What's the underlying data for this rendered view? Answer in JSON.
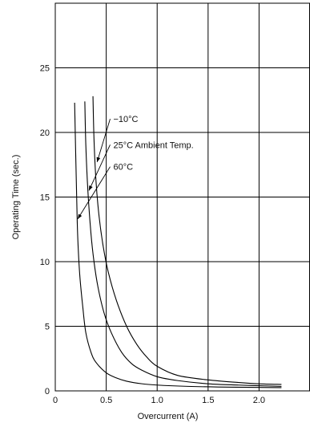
{
  "chart_data": {
    "type": "line",
    "title": "",
    "xlabel": "Overcurrent (A)",
    "ylabel": "Operating Time (sec.)",
    "xlim": [
      0,
      2.5
    ],
    "ylim": [
      0,
      30
    ],
    "x_ticks": [
      0,
      0.5,
      1.0,
      1.5,
      2.0
    ],
    "x_tick_labels": [
      "0",
      "0.5",
      "1.0",
      "1.5",
      "2.0"
    ],
    "y_ticks": [
      0,
      5,
      10,
      15,
      20,
      25
    ],
    "y_tick_labels": [
      "0",
      "5",
      "10",
      "15",
      "20",
      "25"
    ],
    "grid": true,
    "series": [
      {
        "name": "−10°C",
        "x": [
          0.37,
          0.38,
          0.4,
          0.43,
          0.47,
          0.52,
          0.6,
          0.7,
          0.8,
          0.9,
          1.0,
          1.2,
          1.5,
          1.8,
          2.0,
          2.22
        ],
        "y": [
          22.8,
          19.5,
          16.2,
          13.5,
          11.2,
          9.2,
          7.0,
          5.0,
          3.6,
          2.6,
          1.9,
          1.2,
          0.85,
          0.65,
          0.55,
          0.5
        ]
      },
      {
        "name": "25°C Ambient Temp.",
        "x": [
          0.29,
          0.3,
          0.32,
          0.35,
          0.38,
          0.42,
          0.48,
          0.55,
          0.65,
          0.75,
          0.85,
          1.0,
          1.2,
          1.5,
          1.8,
          2.0,
          2.22
        ],
        "y": [
          22.4,
          19.0,
          15.5,
          12.2,
          10.0,
          8.0,
          6.0,
          4.5,
          3.0,
          2.1,
          1.6,
          1.1,
          0.8,
          0.55,
          0.45,
          0.4,
          0.35
        ]
      },
      {
        "name": "60°C",
        "x": [
          0.19,
          0.2,
          0.21,
          0.22,
          0.24,
          0.27,
          0.3,
          0.35,
          0.4,
          0.5,
          0.6,
          0.7,
          0.85,
          1.0,
          1.3,
          1.6,
          2.0,
          2.22
        ],
        "y": [
          22.3,
          18.5,
          15.0,
          12.0,
          9.0,
          6.5,
          4.5,
          3.0,
          2.2,
          1.4,
          1.0,
          0.75,
          0.55,
          0.45,
          0.35,
          0.3,
          0.27,
          0.25
        ]
      }
    ],
    "annotations": [
      {
        "text": "−10°C",
        "series": 0,
        "point": [
          0.41,
          17.7
        ],
        "text_pos": [
          0.57,
          20.8
        ]
      },
      {
        "text": "25°C Ambient Temp.",
        "series": 1,
        "point": [
          0.33,
          15.5
        ],
        "text_pos": [
          0.57,
          18.8
        ]
      },
      {
        "text": "60°C",
        "series": 2,
        "point": [
          0.22,
          13.3
        ],
        "text_pos": [
          0.57,
          17.1
        ]
      }
    ]
  }
}
